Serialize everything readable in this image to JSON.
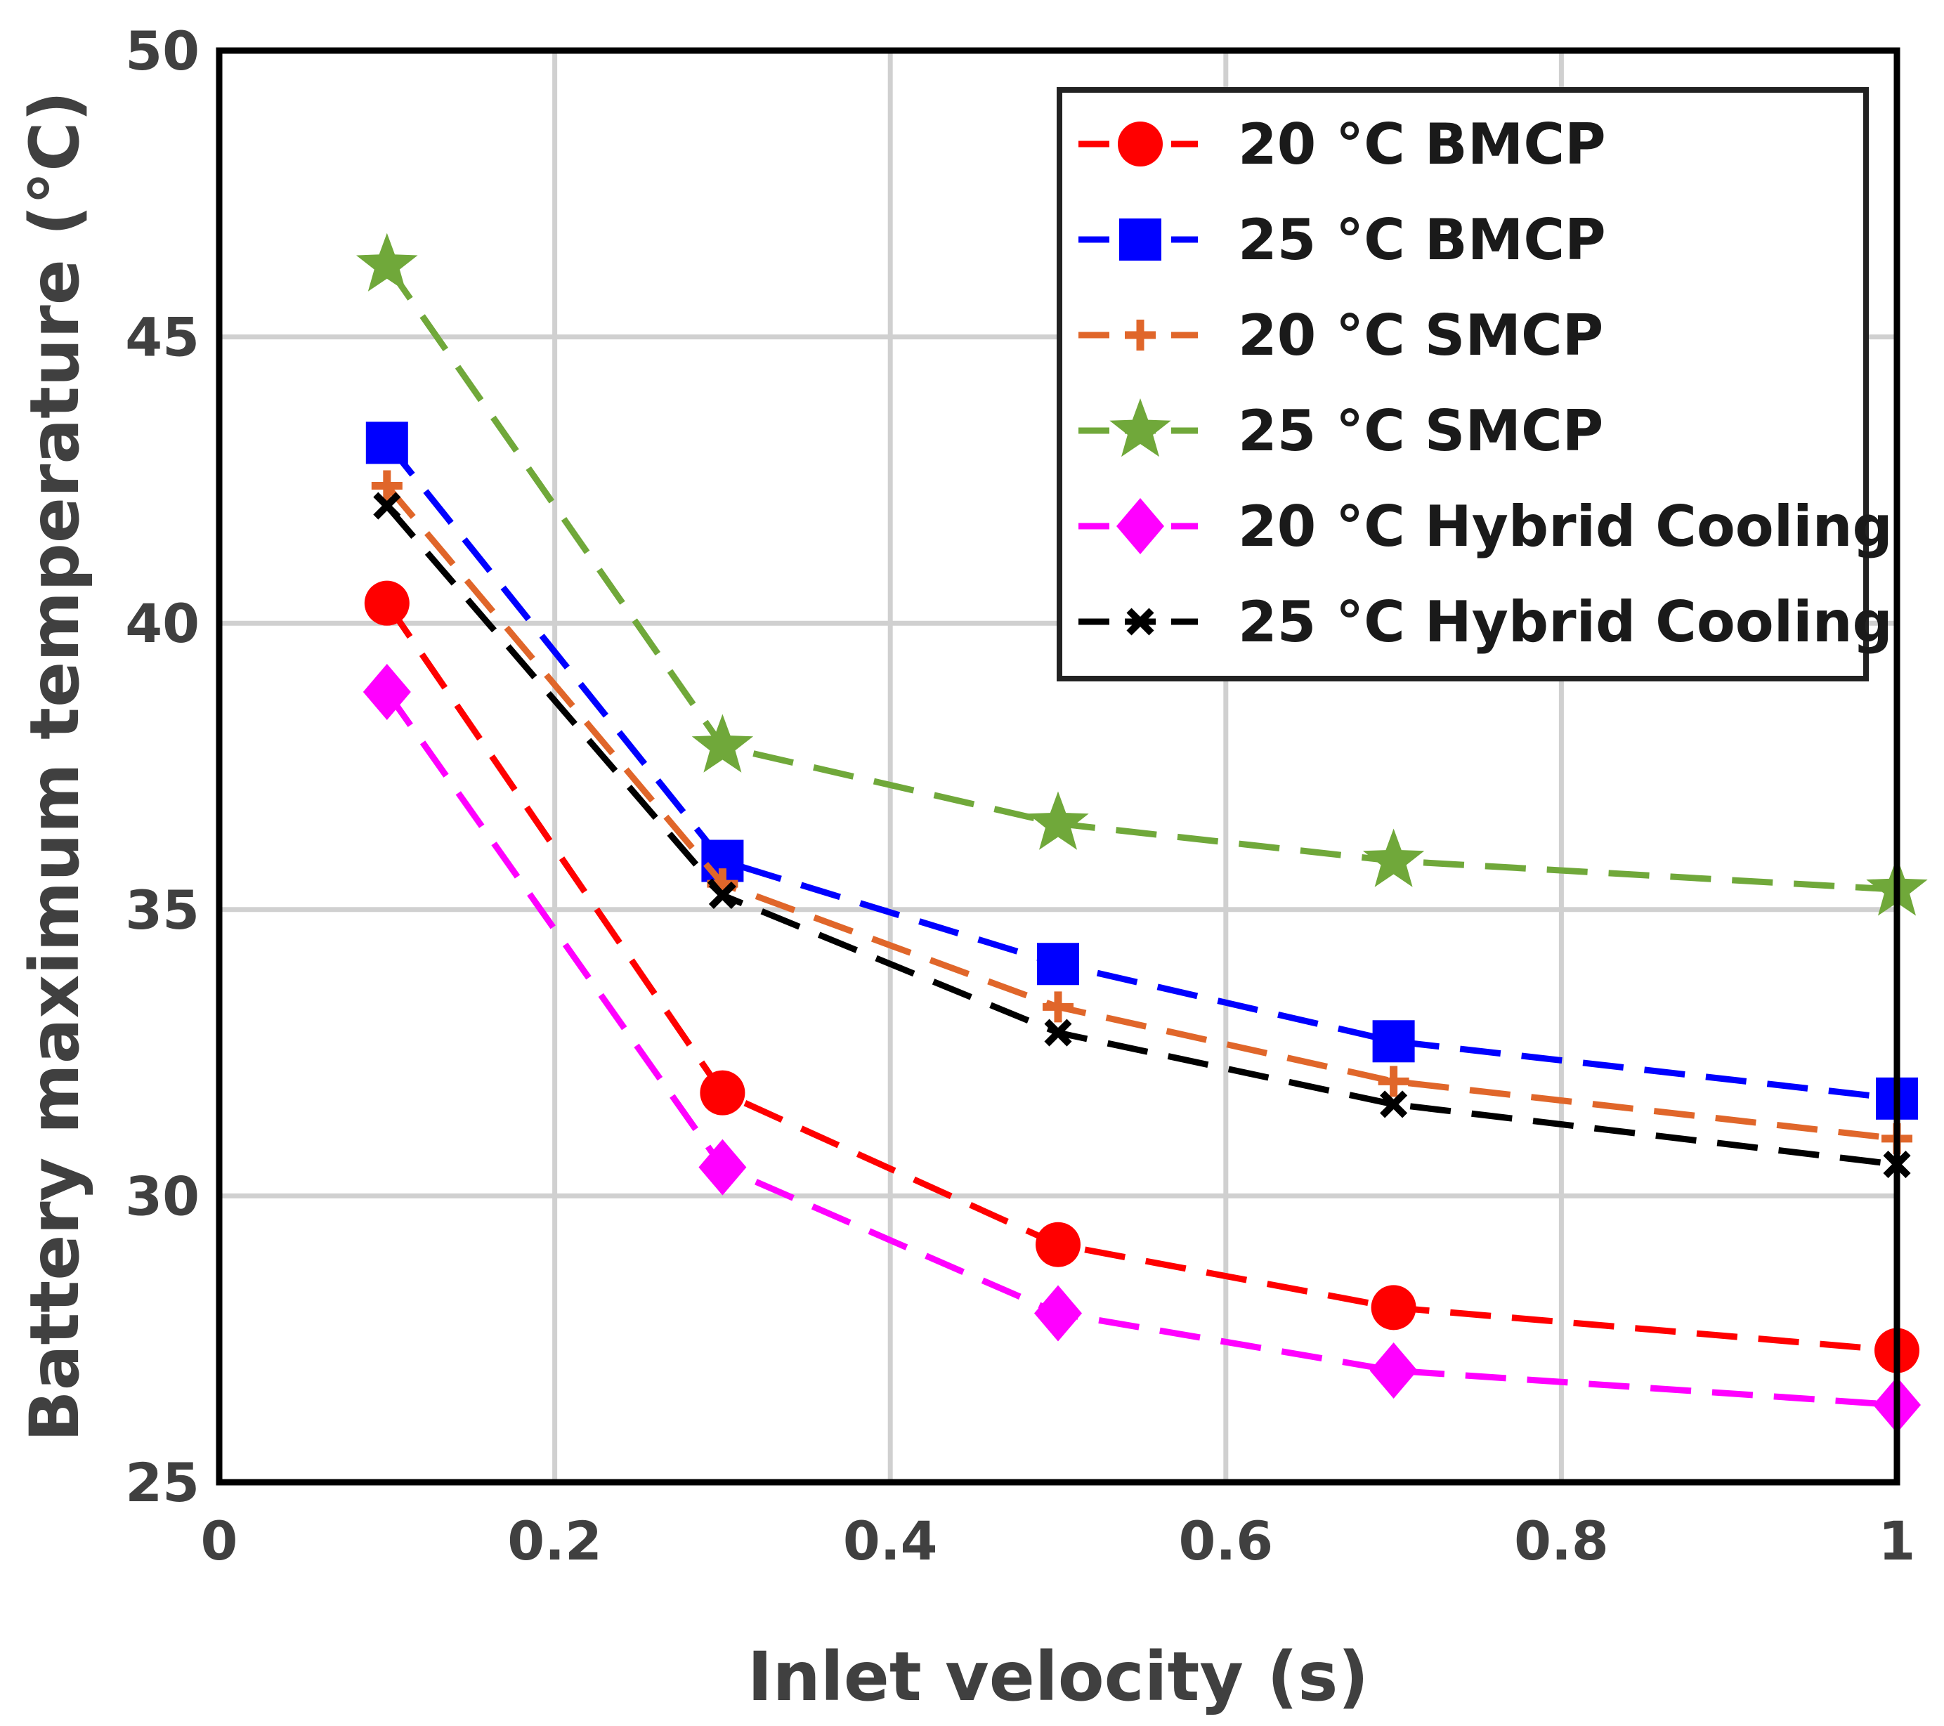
{
  "chart_data": {
    "type": "line",
    "xlabel": "Inlet velocity (s)",
    "ylabel": "Battery maximum temperature (°C)",
    "xlim": [
      0,
      1
    ],
    "ylim": [
      25,
      50
    ],
    "xticks": [
      0,
      0.2,
      0.4,
      0.6,
      0.8,
      1
    ],
    "xtick_labels": [
      "0",
      "0.2",
      "0.4",
      "0.6",
      "0.8",
      "1"
    ],
    "yticks": [
      25,
      30,
      35,
      40,
      45,
      50
    ],
    "ytick_labels": [
      "25",
      "30",
      "35",
      "40",
      "45",
      "50"
    ],
    "grid": true,
    "legend_position": "top-right",
    "x": [
      0.1,
      0.3,
      0.5,
      0.7,
      1.0
    ],
    "series": [
      {
        "name": "20 °C BMCP",
        "color": "#ff0000",
        "marker": "circle",
        "values": [
          40.35,
          31.8,
          29.15,
          28.05,
          27.3
        ]
      },
      {
        "name": "25 °C BMCP",
        "color": "#0000ff",
        "marker": "square",
        "values": [
          43.15,
          35.85,
          34.05,
          32.7,
          31.7
        ]
      },
      {
        "name": "20 °C SMCP",
        "color": "#e0662a",
        "marker": "plus",
        "values": [
          42.4,
          35.45,
          33.3,
          32.0,
          31.0
        ]
      },
      {
        "name": "25 °C SMCP",
        "color": "#70a83a",
        "marker": "star",
        "values": [
          46.25,
          37.85,
          36.5,
          35.85,
          35.35
        ]
      },
      {
        "name": "20 °C Hybrid Cooling",
        "color": "#ff00ff",
        "marker": "diamond",
        "values": [
          38.8,
          30.5,
          27.95,
          26.95,
          26.35
        ]
      },
      {
        "name": "25 °C Hybrid Cooling",
        "color": "#000000",
        "marker": "x",
        "values": [
          42.05,
          35.25,
          32.85,
          31.6,
          30.55
        ]
      }
    ]
  }
}
